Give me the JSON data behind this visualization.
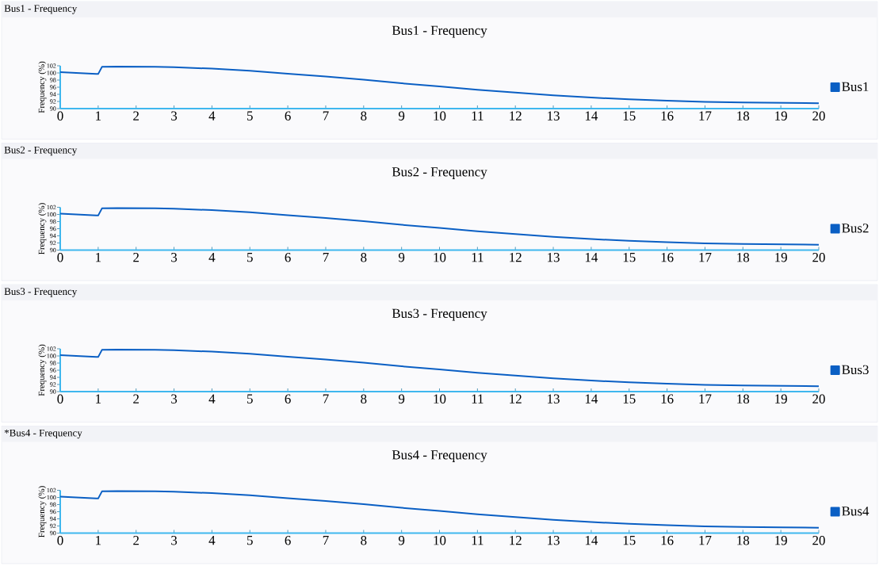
{
  "chart_data": [
    {
      "type": "line",
      "title": "Bus1 - Frequency",
      "ylabel": "Frequency (%)",
      "annotations": [
        "Bus1 - Frequency"
      ],
      "x": [
        0,
        0.95,
        1.0,
        1.1,
        1.5,
        2.5,
        3,
        4,
        5,
        6,
        7,
        8,
        9,
        10,
        11,
        12,
        13,
        14,
        15,
        16,
        17,
        18,
        19,
        20
      ],
      "series": [
        {
          "name": "Bus1",
          "color": "#0a5fc4",
          "values": [
            100.2,
            99.7,
            99.7,
            101.7,
            101.8,
            101.7,
            101.6,
            101.2,
            100.6,
            99.8,
            99.0,
            98.1,
            97.1,
            96.2,
            95.3,
            94.5,
            93.7,
            93.1,
            92.6,
            92.2,
            91.9,
            91.7,
            91.6,
            91.5
          ]
        }
      ],
      "xlim": [
        0,
        20
      ],
      "ylim": [
        90,
        102
      ],
      "xticks": [
        0,
        1,
        2,
        3,
        4,
        5,
        6,
        7,
        8,
        9,
        10,
        11,
        12,
        13,
        14,
        15,
        16,
        17,
        18,
        19,
        20
      ],
      "yticks": [
        90,
        92,
        94,
        96,
        98,
        100,
        102
      ],
      "legend": "right",
      "line_style": "solid",
      "grid": false
    },
    {
      "type": "line",
      "title": "Bus2 - Frequency",
      "ylabel": "Frequency (%)",
      "annotations": [
        "Bus2 - Frequency"
      ],
      "x": [
        0,
        0.95,
        1.0,
        1.1,
        1.5,
        2.5,
        3,
        4,
        5,
        6,
        7,
        8,
        9,
        10,
        11,
        12,
        13,
        14,
        15,
        16,
        17,
        18,
        19,
        20
      ],
      "series": [
        {
          "name": "Bus2",
          "color": "#0a5fc4",
          "values": [
            100.2,
            99.7,
            99.7,
            101.7,
            101.8,
            101.7,
            101.6,
            101.2,
            100.6,
            99.8,
            99.0,
            98.1,
            97.1,
            96.2,
            95.3,
            94.5,
            93.7,
            93.1,
            92.6,
            92.2,
            91.9,
            91.7,
            91.6,
            91.5
          ]
        }
      ],
      "xlim": [
        0,
        20
      ],
      "ylim": [
        90,
        102
      ],
      "xticks": [
        0,
        1,
        2,
        3,
        4,
        5,
        6,
        7,
        8,
        9,
        10,
        11,
        12,
        13,
        14,
        15,
        16,
        17,
        18,
        19,
        20
      ],
      "yticks": [
        90,
        92,
        94,
        96,
        98,
        100,
        102
      ],
      "legend": "right",
      "line_style": "solid",
      "grid": false
    },
    {
      "type": "line",
      "title": "Bus3 - Frequency",
      "ylabel": "Frequency (%)",
      "annotations": [
        "Bus3 - Frequency"
      ],
      "x": [
        0,
        0.95,
        1.0,
        1.1,
        1.5,
        2.5,
        3,
        4,
        5,
        6,
        7,
        8,
        9,
        10,
        11,
        12,
        13,
        14,
        15,
        16,
        17,
        18,
        19,
        20
      ],
      "series": [
        {
          "name": "Bus3",
          "color": "#0a5fc4",
          "values": [
            100.2,
            99.7,
            99.7,
            101.7,
            101.8,
            101.7,
            101.6,
            101.2,
            100.6,
            99.8,
            99.0,
            98.1,
            97.1,
            96.2,
            95.3,
            94.5,
            93.7,
            93.1,
            92.6,
            92.2,
            91.9,
            91.7,
            91.6,
            91.5
          ]
        }
      ],
      "xlim": [
        0,
        20
      ],
      "ylim": [
        90,
        102
      ],
      "xticks": [
        0,
        1,
        2,
        3,
        4,
        5,
        6,
        7,
        8,
        9,
        10,
        11,
        12,
        13,
        14,
        15,
        16,
        17,
        18,
        19,
        20
      ],
      "yticks": [
        90,
        92,
        94,
        96,
        98,
        100,
        102
      ],
      "legend": "right",
      "line_style": "solid",
      "grid": false
    },
    {
      "type": "line",
      "title": "Bus4 - Frequency",
      "ylabel": "Frequency (%)",
      "annotations": [
        "*Bus4 - Frequency"
      ],
      "x": [
        0,
        0.95,
        1.0,
        1.1,
        1.5,
        2.5,
        3,
        4,
        5,
        6,
        7,
        8,
        9,
        10,
        11,
        12,
        13,
        14,
        15,
        16,
        17,
        18,
        19,
        20
      ],
      "series": [
        {
          "name": "Bus4",
          "color": "#0a5fc4",
          "values": [
            100.2,
            99.7,
            99.7,
            101.7,
            101.8,
            101.7,
            101.6,
            101.2,
            100.6,
            99.8,
            99.0,
            98.1,
            97.1,
            96.2,
            95.3,
            94.5,
            93.7,
            93.1,
            92.6,
            92.2,
            91.9,
            91.7,
            91.6,
            91.5
          ]
        }
      ],
      "xlim": [
        0,
        20
      ],
      "ylim": [
        90,
        102
      ],
      "xticks": [
        0,
        1,
        2,
        3,
        4,
        5,
        6,
        7,
        8,
        9,
        10,
        11,
        12,
        13,
        14,
        15,
        16,
        17,
        18,
        19,
        20
      ],
      "yticks": [
        90,
        92,
        94,
        96,
        98,
        100,
        102
      ],
      "legend": "right",
      "line_style": "solid",
      "grid": false
    }
  ]
}
